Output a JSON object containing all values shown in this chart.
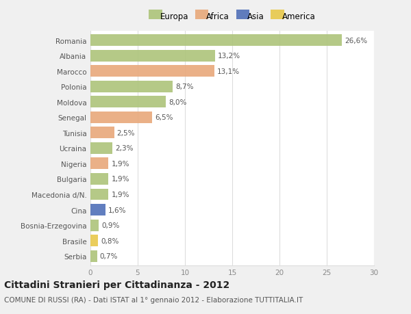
{
  "countries": [
    "Romania",
    "Albania",
    "Marocco",
    "Polonia",
    "Moldova",
    "Senegal",
    "Tunisia",
    "Ucraina",
    "Nigeria",
    "Bulgaria",
    "Macedonia d/N.",
    "Cina",
    "Bosnia-Erzegovina",
    "Brasile",
    "Serbia"
  ],
  "values": [
    26.6,
    13.2,
    13.1,
    8.7,
    8.0,
    6.5,
    2.5,
    2.3,
    1.9,
    1.9,
    1.9,
    1.6,
    0.9,
    0.8,
    0.7
  ],
  "labels": [
    "26,6%",
    "13,2%",
    "13,1%",
    "8,7%",
    "8,0%",
    "6,5%",
    "2,5%",
    "2,3%",
    "1,9%",
    "1,9%",
    "1,9%",
    "1,6%",
    "0,9%",
    "0,8%",
    "0,7%"
  ],
  "continents": [
    "Europa",
    "Europa",
    "Africa",
    "Europa",
    "Europa",
    "Africa",
    "Africa",
    "Europa",
    "Africa",
    "Europa",
    "Europa",
    "Asia",
    "Europa",
    "America",
    "Europa"
  ],
  "colors": {
    "Europa": "#adc47a",
    "Africa": "#e8a87a",
    "Asia": "#5070b8",
    "America": "#e8c84a"
  },
  "xlim": [
    0,
    30
  ],
  "xticks": [
    0,
    5,
    10,
    15,
    20,
    25,
    30
  ],
  "title": "Cittadini Stranieri per Cittadinanza - 2012",
  "subtitle": "COMUNE DI RUSSI (RA) - Dati ISTAT al 1° gennaio 2012 - Elaborazione TUTTITALIA.IT",
  "bg_color": "#f0f0f0",
  "plot_bg": "#ffffff",
  "grid_color": "#dddddd",
  "title_fontsize": 10,
  "subtitle_fontsize": 7.5,
  "tick_fontsize": 7.5,
  "label_fontsize": 7.5,
  "legend_fontsize": 8.5
}
